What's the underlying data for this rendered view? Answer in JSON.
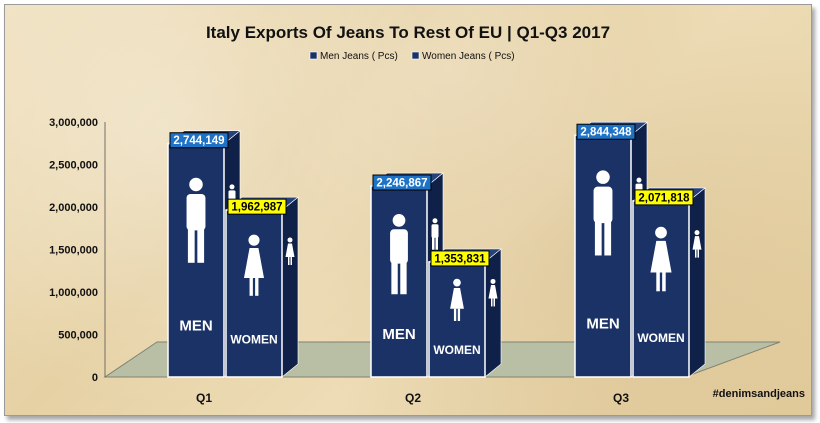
{
  "chart_data": {
    "type": "bar",
    "title": "Italy Exports Of Jeans To Rest Of EU | Q1-Q3 2017",
    "categories": [
      "Q1",
      "Q2",
      "Q3"
    ],
    "series": [
      {
        "name": "Men Jeans ( Pcs)",
        "values": [
          2744149,
          2246867,
          2844348
        ],
        "labels": [
          "2,744,149",
          "2,246,867",
          "2,844,348"
        ],
        "panel_text": "MEN",
        "label_bg": "#1e73c6",
        "label_color": "#ffffff"
      },
      {
        "name": "Women Jeans ( Pcs)",
        "values": [
          1962987,
          1353831,
          2071818
        ],
        "labels": [
          "1,962,987",
          "1,353,831",
          "2,071,818"
        ],
        "panel_text": "WOMEN",
        "label_bg": "#ffff00",
        "label_color": "#000000"
      }
    ],
    "ylim": [
      0,
      3000000
    ],
    "yticks": [
      "0",
      "500,000",
      "1,000,000",
      "1,500,000",
      "2,000,000",
      "2,500,000",
      "3,000,000"
    ],
    "legend_position": "top-center",
    "grid": false,
    "bar_color": "#1a3266",
    "floor_color": "#b9bfa5"
  },
  "watermark": "#denimsandjeans"
}
